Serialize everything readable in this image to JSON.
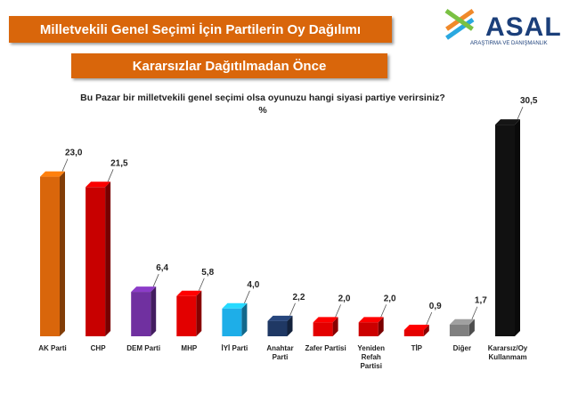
{
  "chart_data": {
    "type": "bar",
    "title": "Milletvekili Genel Seçimi İçin Partilerin Oy Dağılımı",
    "subtitle": "Kararsızlar Dağıtılmadan Önce",
    "question": "Bu Pazar bir milletvekili genel seçimi olsa oyunuzu hangi siyasi partiye verirsiniz?",
    "unit_label": "%",
    "logo": {
      "name": "ASAL",
      "tagline": "ARAŞTIRMA VE DANIŞMANLIK"
    },
    "categories": [
      "AK Parti",
      "CHP",
      "DEM Parti",
      "MHP",
      "İYİ Parti",
      "Anahtar\nParti",
      "Zafer Partisi",
      "Yeniden\nRefah\nPartisi",
      "TİP",
      "Diğer",
      "Kararsız/Oy\nKullanmam"
    ],
    "values": [
      23.0,
      21.5,
      6.4,
      5.8,
      4.0,
      2.2,
      2.0,
      2.0,
      0.9,
      1.7,
      30.5
    ],
    "value_labels": [
      "23,0",
      "21,5",
      "6,4",
      "5,8",
      "4,0",
      "2,2",
      "2,0",
      "2,0",
      "0,9",
      "1,7",
      "30,5"
    ],
    "colors": [
      "#d9660b",
      "#c80000",
      "#7030a0",
      "#e30000",
      "#1eaee8",
      "#1f3864",
      "#e30000",
      "#cc0000",
      "#e30000",
      "#808080",
      "#111111"
    ]
  }
}
